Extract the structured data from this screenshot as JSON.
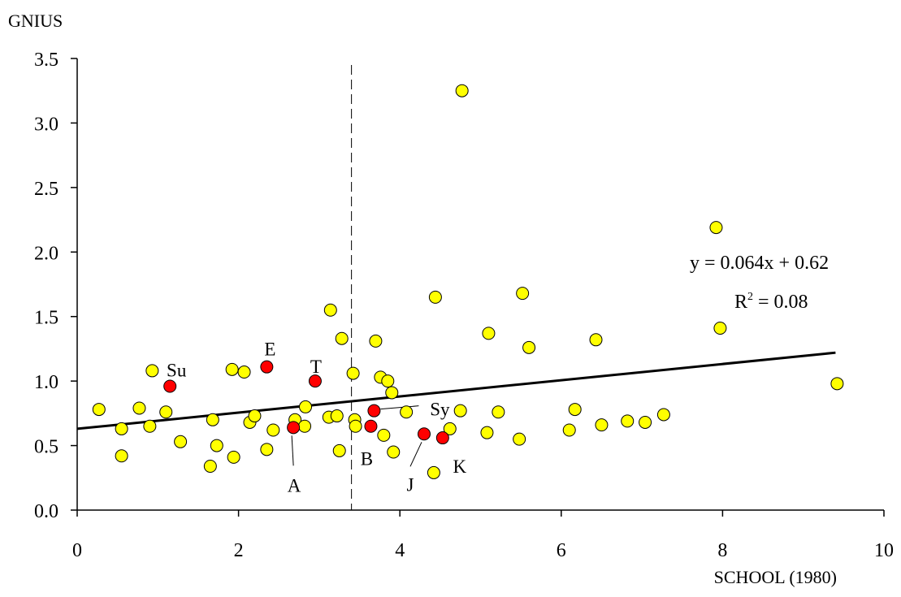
{
  "chart_data": {
    "type": "scatter",
    "title": "",
    "xlabel": "SCHOOL (1980)",
    "ylabel": "GNIUS",
    "xlim": [
      0,
      10
    ],
    "ylim": [
      0.0,
      3.5
    ],
    "xticks": [
      0,
      2,
      4,
      6,
      8,
      10
    ],
    "xtick_labels": [
      "0",
      "2",
      "4",
      "6",
      "8",
      "10"
    ],
    "yticks": [
      0.0,
      0.5,
      1.0,
      1.5,
      2.0,
      2.5,
      3.0,
      3.5
    ],
    "ytick_labels": [
      "0.0",
      "0.5",
      "1.0",
      "1.5",
      "2.0",
      "2.5",
      "3.0",
      "3.5"
    ],
    "grid": false,
    "reference_line_x": 3.4,
    "colors": {
      "other": "#FFFF00",
      "highlighted": "#FF0000",
      "outline": "#000000"
    },
    "trendline": {
      "x": [
        0.0,
        9.4
      ],
      "y": [
        0.63,
        1.22
      ],
      "equation": "y = 0.064x + 0.62",
      "r2_prefix": "R",
      "r2_sup": "2",
      "r2_suffix": " = 0.08"
    },
    "series": [
      {
        "group": "highlighted",
        "points": [
          {
            "x": 1.15,
            "y": 0.96,
            "label": "Su"
          },
          {
            "x": 2.35,
            "y": 1.11,
            "label": "E"
          },
          {
            "x": 2.95,
            "y": 1.0,
            "label": "T"
          },
          {
            "x": 3.68,
            "y": 0.77,
            "label": "Sy"
          },
          {
            "x": 3.64,
            "y": 0.65,
            "label": "B"
          },
          {
            "x": 4.3,
            "y": 0.59,
            "label": "J"
          },
          {
            "x": 4.53,
            "y": 0.56,
            "label": "K"
          },
          {
            "x": 2.68,
            "y": 0.64,
            "label": "A"
          }
        ]
      },
      {
        "group": "other",
        "points": [
          {
            "x": 0.27,
            "y": 0.78
          },
          {
            "x": 0.55,
            "y": 0.63
          },
          {
            "x": 0.55,
            "y": 0.42
          },
          {
            "x": 0.77,
            "y": 0.79
          },
          {
            "x": 0.9,
            "y": 0.65
          },
          {
            "x": 0.93,
            "y": 1.08
          },
          {
            "x": 1.1,
            "y": 0.76
          },
          {
            "x": 1.28,
            "y": 0.53
          },
          {
            "x": 1.65,
            "y": 0.34
          },
          {
            "x": 1.68,
            "y": 0.7
          },
          {
            "x": 1.73,
            "y": 0.5
          },
          {
            "x": 1.92,
            "y": 1.09
          },
          {
            "x": 1.94,
            "y": 0.41
          },
          {
            "x": 2.07,
            "y": 1.07
          },
          {
            "x": 2.14,
            "y": 0.68
          },
          {
            "x": 2.2,
            "y": 0.73
          },
          {
            "x": 2.35,
            "y": 0.47
          },
          {
            "x": 2.43,
            "y": 0.62
          },
          {
            "x": 2.7,
            "y": 0.7
          },
          {
            "x": 2.82,
            "y": 0.65
          },
          {
            "x": 2.83,
            "y": 0.8
          },
          {
            "x": 3.12,
            "y": 0.72
          },
          {
            "x": 3.14,
            "y": 1.55
          },
          {
            "x": 3.22,
            "y": 0.73
          },
          {
            "x": 3.25,
            "y": 0.46
          },
          {
            "x": 3.28,
            "y": 1.33
          },
          {
            "x": 3.42,
            "y": 1.06
          },
          {
            "x": 3.44,
            "y": 0.7
          },
          {
            "x": 3.45,
            "y": 0.65
          },
          {
            "x": 3.7,
            "y": 1.31
          },
          {
            "x": 3.76,
            "y": 1.03
          },
          {
            "x": 3.8,
            "y": 0.58
          },
          {
            "x": 3.85,
            "y": 1.0
          },
          {
            "x": 3.9,
            "y": 0.91
          },
          {
            "x": 3.92,
            "y": 0.45
          },
          {
            "x": 4.08,
            "y": 0.76
          },
          {
            "x": 4.42,
            "y": 0.29
          },
          {
            "x": 4.44,
            "y": 1.65
          },
          {
            "x": 4.62,
            "y": 0.63
          },
          {
            "x": 4.75,
            "y": 0.77
          },
          {
            "x": 4.77,
            "y": 3.25
          },
          {
            "x": 5.08,
            "y": 0.6
          },
          {
            "x": 5.1,
            "y": 1.37
          },
          {
            "x": 5.22,
            "y": 0.76
          },
          {
            "x": 5.48,
            "y": 0.55
          },
          {
            "x": 5.52,
            "y": 1.68
          },
          {
            "x": 5.6,
            "y": 1.26
          },
          {
            "x": 6.1,
            "y": 0.62
          },
          {
            "x": 6.17,
            "y": 0.78
          },
          {
            "x": 6.43,
            "y": 1.32
          },
          {
            "x": 6.5,
            "y": 0.66
          },
          {
            "x": 6.82,
            "y": 0.69
          },
          {
            "x": 7.04,
            "y": 0.68
          },
          {
            "x": 7.27,
            "y": 0.74
          },
          {
            "x": 7.92,
            "y": 2.19
          },
          {
            "x": 7.97,
            "y": 1.41
          },
          {
            "x": 9.42,
            "y": 0.98
          }
        ]
      }
    ]
  }
}
